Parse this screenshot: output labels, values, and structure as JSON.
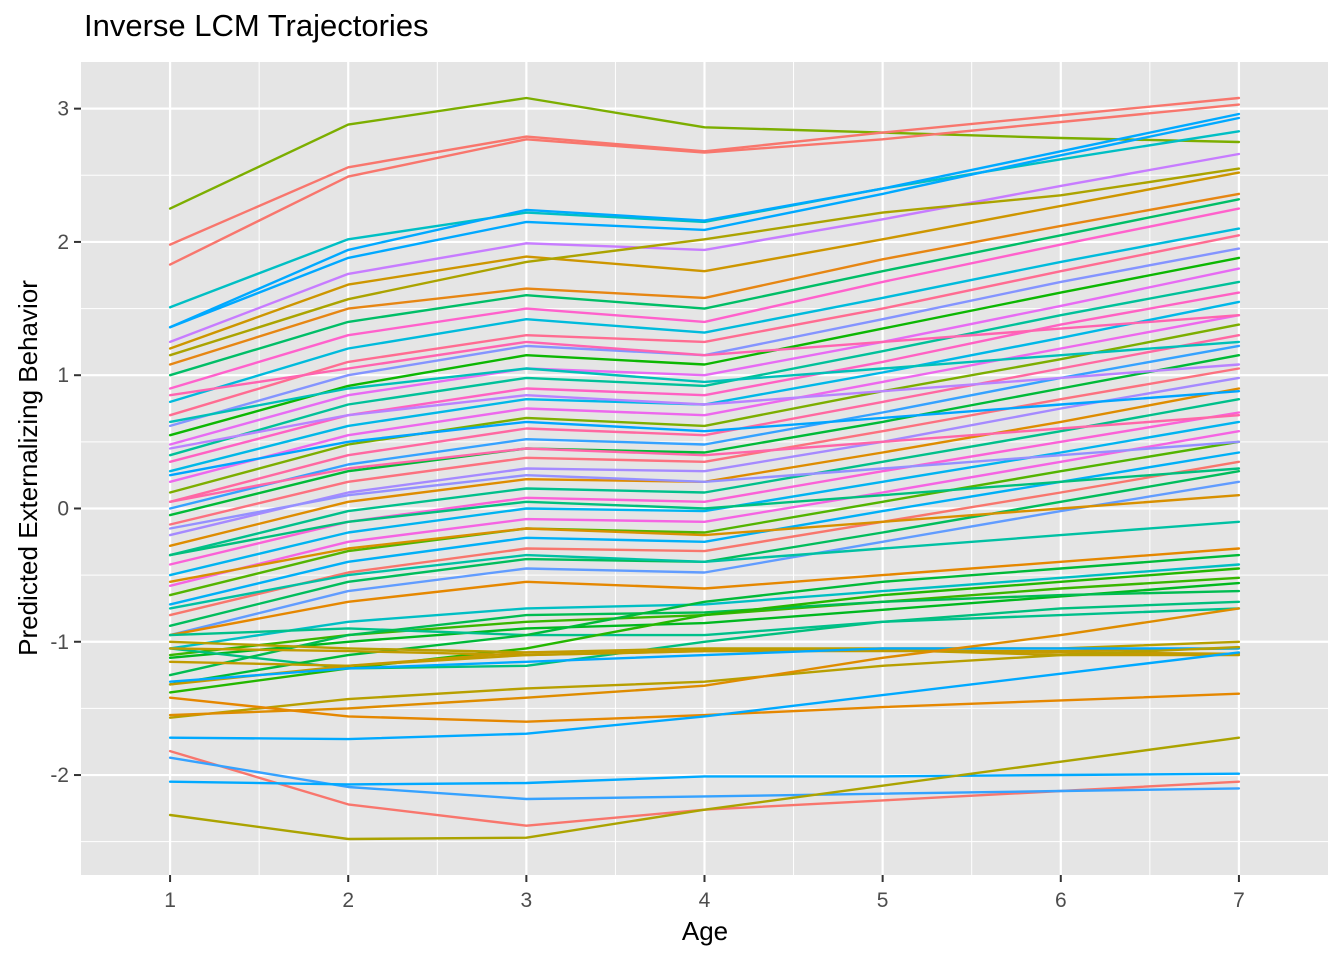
{
  "chart_data": {
    "type": "line",
    "title": "Inverse LCM Trajectories",
    "xlabel": "Age",
    "ylabel": "Predicted Externalizing Behavior",
    "x": [
      1,
      2,
      3,
      4,
      5,
      6,
      7
    ],
    "xlim": [
      0.5,
      7.5
    ],
    "ylim": [
      -2.75,
      3.35
    ],
    "x_ticks": [
      1,
      2,
      3,
      4,
      5,
      6,
      7
    ],
    "y_ticks": [
      -2,
      -1,
      0,
      1,
      2,
      3
    ],
    "grid": true,
    "legend": "none",
    "background": "#e5e5e5",
    "grid_color": "#ffffff",
    "series": [
      {
        "values": [
          2.25,
          2.88,
          3.08,
          2.86,
          2.82,
          2.78,
          2.75
        ],
        "color": "#7cae00"
      },
      {
        "values": [
          1.98,
          2.56,
          2.79,
          2.68,
          2.82,
          2.95,
          3.08
        ],
        "color": "#f8766d"
      },
      {
        "values": [
          1.83,
          2.49,
          2.77,
          2.67,
          2.77,
          2.9,
          3.03
        ],
        "color": "#f8766d"
      },
      {
        "values": [
          1.51,
          2.02,
          2.22,
          2.15,
          2.4,
          2.62,
          2.83
        ],
        "color": "#00bfc4"
      },
      {
        "values": [
          1.36,
          1.94,
          2.24,
          2.16,
          2.4,
          2.68,
          2.96
        ],
        "color": "#00a9ff"
      },
      {
        "values": [
          1.36,
          1.88,
          2.15,
          2.09,
          2.36,
          2.65,
          2.93
        ],
        "color": "#00a9ff"
      },
      {
        "values": [
          1.25,
          1.76,
          1.99,
          1.94,
          2.17,
          2.42,
          2.66
        ],
        "color": "#c77cff"
      },
      {
        "values": [
          1.2,
          1.68,
          1.89,
          1.78,
          2.02,
          2.27,
          2.52
        ],
        "color": "#cd9600"
      },
      {
        "values": [
          1.15,
          1.57,
          1.85,
          2.02,
          2.22,
          2.35,
          2.55
        ],
        "color": "#aba300"
      },
      {
        "values": [
          1.08,
          1.5,
          1.65,
          1.58,
          1.87,
          2.12,
          2.36
        ],
        "color": "#e68613"
      },
      {
        "values": [
          1.0,
          1.4,
          1.6,
          1.5,
          1.78,
          2.05,
          2.32
        ],
        "color": "#00be67"
      },
      {
        "values": [
          0.9,
          1.3,
          1.5,
          1.4,
          1.7,
          1.98,
          2.25
        ],
        "color": "#ff61cc"
      },
      {
        "values": [
          0.8,
          1.2,
          1.42,
          1.32,
          1.58,
          1.85,
          2.1
        ],
        "color": "#00bbdc"
      },
      {
        "values": [
          0.7,
          1.1,
          1.3,
          1.25,
          1.5,
          1.78,
          2.05
        ],
        "color": "#ff6c91"
      },
      {
        "values": [
          0.62,
          1.0,
          1.22,
          1.15,
          1.42,
          1.7,
          1.95
        ],
        "color": "#8494ff"
      },
      {
        "values": [
          0.55,
          0.92,
          1.15,
          1.08,
          1.35,
          1.62,
          1.88
        ],
        "color": "#0cb702"
      },
      {
        "values": [
          0.48,
          0.85,
          1.05,
          1.0,
          1.25,
          1.52,
          1.8
        ],
        "color": "#e76bf3"
      },
      {
        "values": [
          0.4,
          0.78,
          0.98,
          0.92,
          1.18,
          1.45,
          1.7
        ],
        "color": "#00c19a"
      },
      {
        "values": [
          0.35,
          0.7,
          0.9,
          0.85,
          1.1,
          1.38,
          1.62
        ],
        "color": "#ff61c3"
      },
      {
        "values": [
          0.28,
          0.62,
          0.82,
          0.78,
          1.02,
          1.28,
          1.55
        ],
        "color": "#00b8e7"
      },
      {
        "values": [
          0.2,
          0.55,
          0.75,
          0.7,
          0.95,
          1.2,
          1.45
        ],
        "color": "#ed68ed"
      },
      {
        "values": [
          0.12,
          0.48,
          0.68,
          0.62,
          0.88,
          1.12,
          1.38
        ],
        "color": "#7cae00"
      },
      {
        "values": [
          0.05,
          0.4,
          0.6,
          0.55,
          0.8,
          1.05,
          1.3
        ],
        "color": "#ff68a1"
      },
      {
        "values": [
          0.0,
          0.33,
          0.52,
          0.48,
          0.72,
          0.98,
          1.22
        ],
        "color": "#35a2ff"
      },
      {
        "values": [
          -0.05,
          0.28,
          0.45,
          0.42,
          0.65,
          0.9,
          1.15
        ],
        "color": "#00ba38"
      },
      {
        "values": [
          -0.12,
          0.2,
          0.38,
          0.35,
          0.58,
          0.82,
          1.05
        ],
        "color": "#fc717f"
      },
      {
        "values": [
          -0.2,
          0.12,
          0.3,
          0.28,
          0.5,
          0.75,
          0.98
        ],
        "color": "#a58aff"
      },
      {
        "values": [
          -0.28,
          0.05,
          0.22,
          0.2,
          0.42,
          0.65,
          0.9
        ],
        "color": "#de8c00"
      },
      {
        "values": [
          -0.35,
          -0.02,
          0.15,
          0.12,
          0.35,
          0.58,
          0.82
        ],
        "color": "#00c08b"
      },
      {
        "values": [
          -0.42,
          -0.1,
          0.08,
          0.05,
          0.28,
          0.5,
          0.72
        ],
        "color": "#fb61d7"
      },
      {
        "values": [
          -0.5,
          -0.18,
          0.0,
          -0.02,
          0.2,
          0.42,
          0.65
        ],
        "color": "#00b4f0"
      },
      {
        "values": [
          -0.58,
          -0.25,
          -0.08,
          -0.1,
          0.12,
          0.35,
          0.58
        ],
        "color": "#f564e3"
      },
      {
        "values": [
          -0.65,
          -0.32,
          -0.15,
          -0.18,
          0.05,
          0.28,
          0.5
        ],
        "color": "#53b400"
      },
      {
        "values": [
          -0.72,
          -0.4,
          -0.22,
          -0.25,
          -0.02,
          0.2,
          0.42
        ],
        "color": "#00b0f6"
      },
      {
        "values": [
          -0.8,
          -0.48,
          -0.3,
          -0.32,
          -0.1,
          0.12,
          0.35
        ],
        "color": "#f8766d"
      },
      {
        "values": [
          -0.88,
          -0.55,
          -0.38,
          -0.4,
          -0.18,
          0.05,
          0.28
        ],
        "color": "#00bd5c"
      },
      {
        "values": [
          -0.95,
          -0.62,
          -0.45,
          -0.48,
          -0.25,
          -0.02,
          0.2
        ],
        "color": "#619cff"
      },
      {
        "values": [
          0.85,
          1.05,
          1.25,
          1.15,
          1.25,
          1.35,
          1.45
        ],
        "color": "#ff64b0"
      },
      {
        "values": [
          0.65,
          0.9,
          1.05,
          0.95,
          1.05,
          1.15,
          1.25
        ],
        "color": "#00c0b8"
      },
      {
        "values": [
          0.45,
          0.7,
          0.85,
          0.78,
          0.88,
          0.98,
          1.08
        ],
        "color": "#b983ff"
      },
      {
        "values": [
          0.25,
          0.5,
          0.65,
          0.58,
          0.68,
          0.78,
          0.88
        ],
        "color": "#00a5ff"
      },
      {
        "values": [
          0.05,
          0.3,
          0.45,
          0.4,
          0.5,
          0.6,
          0.7
        ],
        "color": "#ff66a8"
      },
      {
        "values": [
          -0.15,
          0.1,
          0.25,
          0.2,
          0.3,
          0.4,
          0.5
        ],
        "color": "#9590ff"
      },
      {
        "values": [
          -0.35,
          -0.1,
          0.05,
          0.0,
          0.1,
          0.2,
          0.3
        ],
        "color": "#00bf7d"
      },
      {
        "values": [
          -0.55,
          -0.3,
          -0.15,
          -0.2,
          -0.1,
          0.0,
          0.1
        ],
        "color": "#d89000"
      },
      {
        "values": [
          -0.75,
          -0.5,
          -0.35,
          -0.4,
          -0.3,
          -0.2,
          -0.1
        ],
        "color": "#00c1a3"
      },
      {
        "values": [
          -0.95,
          -0.7,
          -0.55,
          -0.6,
          -0.5,
          -0.4,
          -0.3
        ],
        "color": "#e58700"
      },
      {
        "values": [
          -1.05,
          -0.85,
          -0.75,
          -0.72,
          -0.62,
          -0.52,
          -0.42
        ],
        "color": "#00bfc4"
      },
      {
        "values": [
          -1.1,
          -0.95,
          -0.85,
          -0.8,
          -0.7,
          -0.6,
          -0.52
        ],
        "color": "#39b600"
      },
      {
        "values": [
          -1.12,
          -1.0,
          -0.9,
          -0.86,
          -0.76,
          -0.66,
          -0.56
        ],
        "color": "#00b81f"
      },
      {
        "values": [
          -1.05,
          -1.2,
          -1.18,
          -1.0,
          -0.85,
          -0.75,
          -0.7
        ],
        "color": "#00bf7d"
      },
      {
        "values": [
          -0.95,
          -0.9,
          -0.95,
          -0.95,
          -0.85,
          -0.8,
          -0.75
        ],
        "color": "#00c08b"
      },
      {
        "values": [
          -1.25,
          -0.95,
          -0.8,
          -0.78,
          -0.7,
          -0.65,
          -0.62
        ],
        "color": "#00bc51"
      },
      {
        "values": [
          -1.32,
          -1.1,
          -0.95,
          -0.7,
          -0.55,
          -0.45,
          -0.35
        ],
        "color": "#00ba38"
      },
      {
        "values": [
          -1.38,
          -1.2,
          -1.05,
          -0.8,
          -0.65,
          -0.55,
          -0.45
        ],
        "color": "#24b700"
      },
      {
        "values": [
          -1.0,
          -1.05,
          -1.08,
          -1.05,
          -1.05,
          -1.05,
          -1.0
        ],
        "color": "#b79f00"
      },
      {
        "values": [
          -1.05,
          -1.07,
          -1.1,
          -1.07,
          -1.07,
          -1.07,
          -1.05
        ],
        "color": "#c09b00"
      },
      {
        "values": [
          -1.32,
          -1.18,
          -1.08,
          -1.06,
          -1.06,
          -1.08,
          -1.09
        ],
        "color": "#c49a00"
      },
      {
        "values": [
          -1.15,
          -1.18,
          -1.1,
          -1.07,
          -1.06,
          -1.1,
          -1.1
        ],
        "color": "#c09b00"
      },
      {
        "values": [
          -1.3,
          -1.2,
          -1.15,
          -1.1,
          -1.05,
          -1.05,
          -1.05
        ],
        "color": "#00a9ff"
      },
      {
        "values": [
          -1.57,
          -1.43,
          -1.35,
          -1.3,
          -1.18,
          -1.1,
          -1.04
        ],
        "color": "#b79f00"
      },
      {
        "values": [
          -1.55,
          -1.5,
          -1.42,
          -1.33,
          -1.12,
          -0.95,
          -0.75
        ],
        "color": "#de8c00"
      },
      {
        "values": [
          -1.42,
          -1.56,
          -1.6,
          -1.55,
          -1.49,
          -1.44,
          -1.39
        ],
        "color": "#e58700"
      },
      {
        "values": [
          -1.72,
          -1.73,
          -1.69,
          -1.56,
          -1.4,
          -1.24,
          -1.08
        ],
        "color": "#00a9ff"
      },
      {
        "values": [
          -1.82,
          -2.22,
          -2.38,
          -2.26,
          -2.19,
          -2.12,
          -2.05
        ],
        "color": "#f8766d"
      },
      {
        "values": [
          -1.87,
          -2.09,
          -2.18,
          -2.16,
          -2.14,
          -2.12,
          -2.1
        ],
        "color": "#35a2ff"
      },
      {
        "values": [
          -2.05,
          -2.07,
          -2.06,
          -2.01,
          -2.01,
          -2.0,
          -1.99
        ],
        "color": "#00a9ff"
      },
      {
        "values": [
          -2.3,
          -2.48,
          -2.47,
          -2.26,
          -2.08,
          -1.9,
          -1.72
        ],
        "color": "#aba300"
      }
    ]
  }
}
